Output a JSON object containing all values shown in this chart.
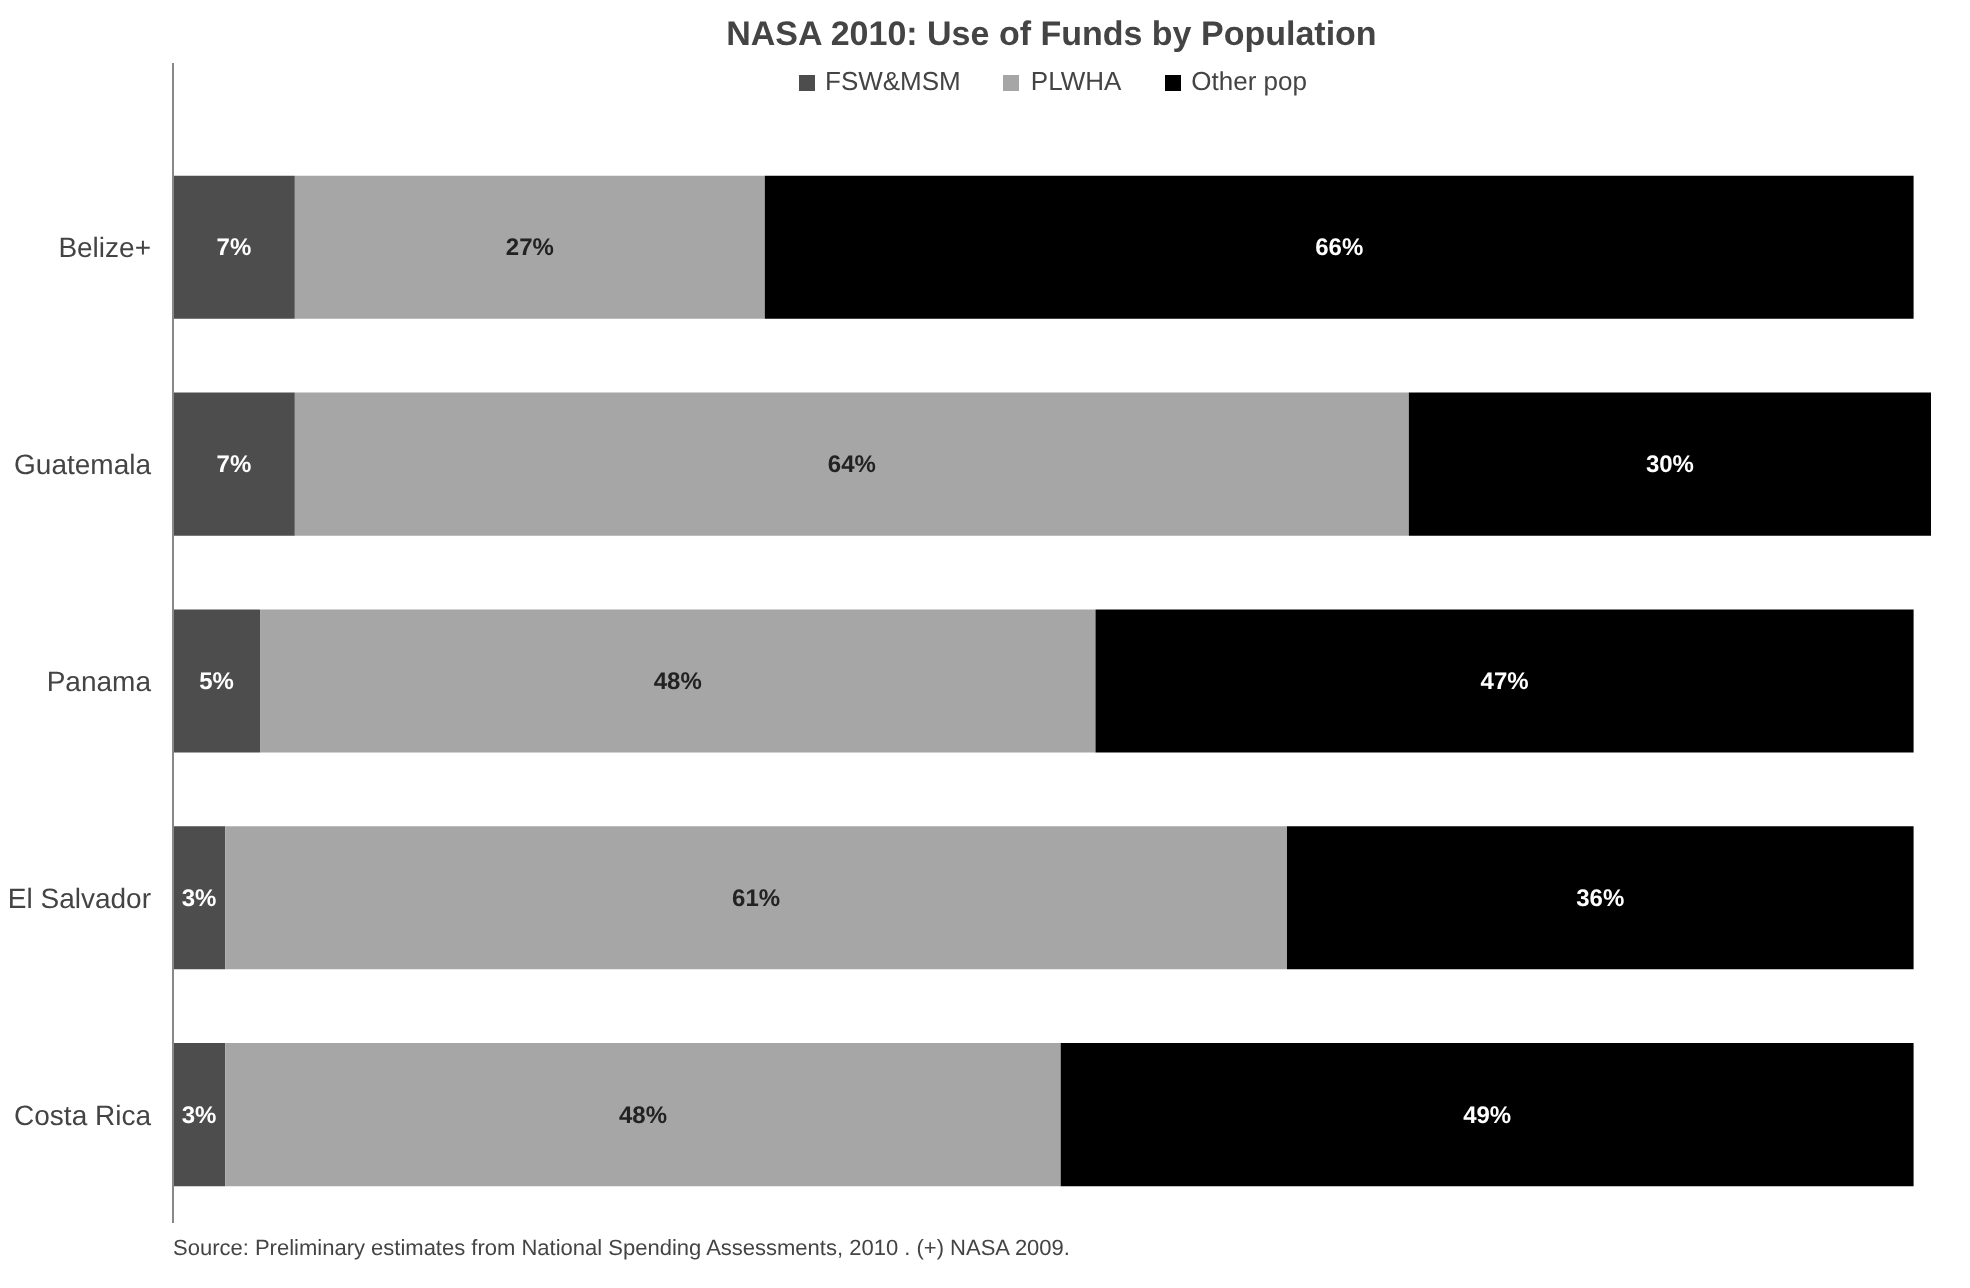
{
  "chart_data": {
    "type": "bar",
    "orientation": "horizontal",
    "stacked": true,
    "title": "NASA 2010: Use of Funds by Population",
    "categories": [
      "Belize+",
      "Guatemala",
      "Panama",
      "El Salvador",
      "Costa Rica"
    ],
    "series": [
      {
        "name": "FSW&MSM",
        "color": "#4d4d4d",
        "values": [
          7,
          7,
          5,
          3,
          3
        ],
        "value_labels": [
          "7%",
          "7%",
          "5%",
          "3%",
          "3%"
        ]
      },
      {
        "name": "PLWHA",
        "color": "#a6a6a6",
        "values": [
          27,
          64,
          48,
          61,
          48
        ],
        "value_labels": [
          "27%",
          "64%",
          "48%",
          "61%",
          "48%"
        ]
      },
      {
        "name": "Other pop",
        "color": "#000000",
        "values": [
          66,
          30,
          47,
          36,
          49
        ],
        "value_labels": [
          "66%",
          "30%",
          "47%",
          "36%",
          "49%"
        ]
      }
    ],
    "legend": "top",
    "grid": false,
    "annotations": [
      "Source: Preliminary estimates from National Spending Assessments, 2010 . (+) NASA 2009."
    ]
  }
}
